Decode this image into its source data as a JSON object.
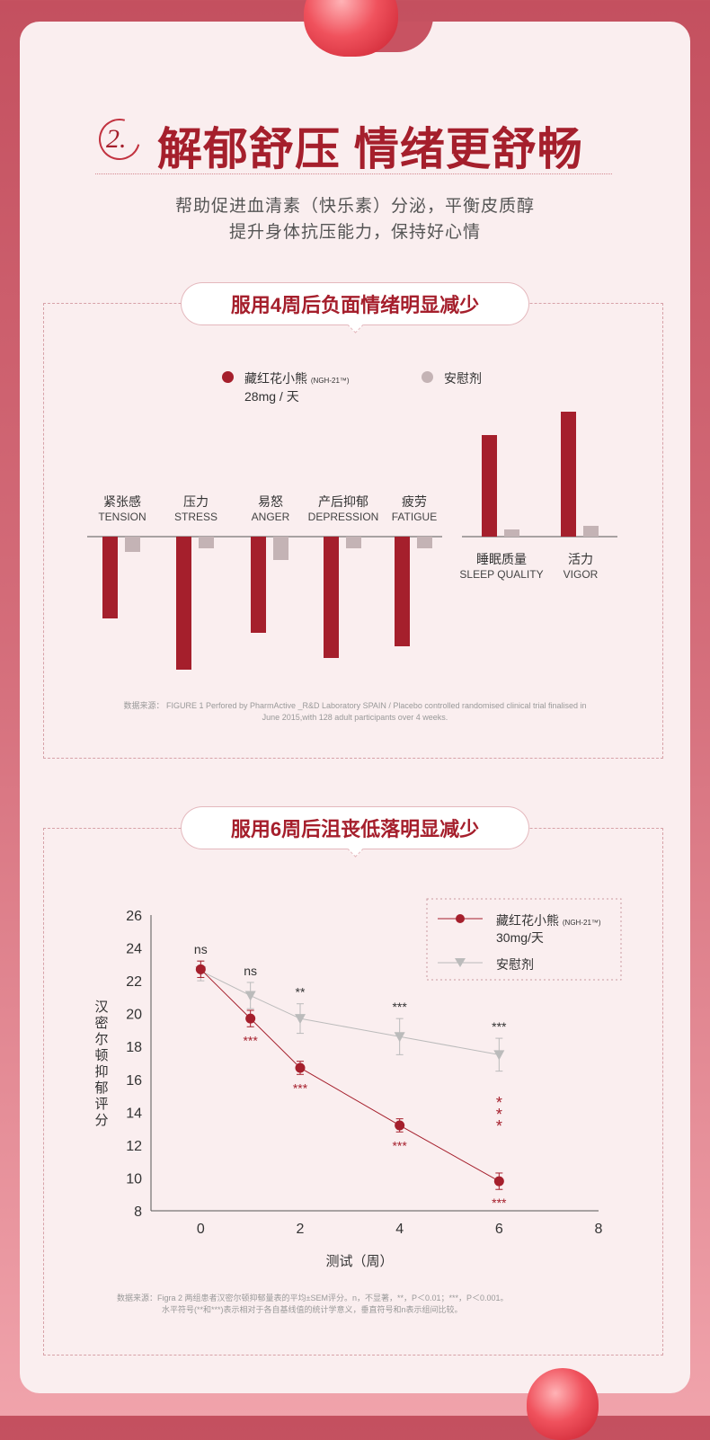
{
  "header": {
    "number": "2.",
    "title": "解郁舒压 情绪更舒畅",
    "subtitle_lines": [
      "帮助促进血清素（快乐素）分泌，平衡皮质醇",
      "提升身体抗压能力，保持好心情"
    ]
  },
  "section1": {
    "pill": "服用4周后负面情绪明显减少",
    "legend": {
      "product_name": "藏红花小熊",
      "product_code": "(NGH-21™)",
      "product_dose": "28mg / 天",
      "placebo": "安慰剂"
    },
    "source_prefix": "数据来源：",
    "source_text": "FIGURE 1 Perfored by PharmActive _R&D Laboratory SPAIN / Placebo controlled randomised clinical trial finalised in June 2015,with 128 adult participants over 4 weeks."
  },
  "section2": {
    "pill": "服用6周后沮丧低落明显减少",
    "legend": {
      "product_name": "藏红花小熊",
      "product_code": "(NGH-21™)",
      "product_dose": "30mg/天",
      "placebo": "安慰剂"
    },
    "source_line1": "数据来源：Figra 2 两组患者汉密尔顿抑郁量表的平均±SEM评分。n，不显著，**，P＜0.01；***，P＜0.001。",
    "source_line2": "水平符号(**和***)表示相对于各自基线值的统计学意义，垂直符号和n表示组间比较。"
  },
  "colors": {
    "product": "#a51f2c",
    "placebo": "#c4b3b5",
    "accent": "#a51f2c"
  },
  "chart_data": [
    {
      "type": "bar",
      "title": "",
      "note": "relative change vs baseline, unitless estimates (no axis printed)",
      "groups": [
        {
          "categories": [
            {
              "cn": "紧张感",
              "en": "TENSION"
            },
            {
              "cn": "压力",
              "en": "STRESS"
            },
            {
              "cn": "易怒",
              "en": "ANGER"
            },
            {
              "cn": "产后抑郁",
              "en": "DEPRESSION"
            },
            {
              "cn": "疲劳",
              "en": "FATIGUE"
            }
          ],
          "series": [
            {
              "name": "藏红花小熊",
              "values": [
                -91,
                -148,
                -107,
                -135,
                -122
              ]
            },
            {
              "name": "安慰剂",
              "values": [
                -17,
                -13,
                -26,
                -13,
                -13
              ]
            }
          ]
        },
        {
          "categories": [
            {
              "cn": "睡眠质量",
              "en": "SLEEP QUALITY"
            },
            {
              "cn": "活力",
              "en": "VIGOR"
            }
          ],
          "series": [
            {
              "name": "藏红花小熊",
              "values": [
                113,
                139
              ]
            },
            {
              "name": "安慰剂",
              "values": [
                8,
                12
              ]
            }
          ]
        }
      ]
    },
    {
      "type": "line",
      "title": "",
      "xlabel": "测试（周）",
      "ylabel": "汉密尔顿抑郁评分",
      "xlim": [
        -1,
        8
      ],
      "ylim": [
        8,
        26
      ],
      "xticks": [
        0,
        2,
        4,
        6,
        8
      ],
      "yticks": [
        8,
        10,
        12,
        14,
        16,
        18,
        20,
        22,
        24,
        26
      ],
      "series": [
        {
          "name": "藏红花小熊",
          "x": [
            0,
            1,
            2,
            4,
            6
          ],
          "y": [
            22.7,
            19.7,
            16.7,
            13.2,
            9.8
          ],
          "err": [
            0.5,
            0.5,
            0.4,
            0.4,
            0.5
          ],
          "marker": "circle",
          "below_labels": [
            "",
            "***",
            "***",
            "***",
            "***"
          ]
        },
        {
          "name": "安慰剂",
          "x": [
            0,
            1,
            2,
            4,
            6
          ],
          "y": [
            22.6,
            21.1,
            19.7,
            18.6,
            17.5
          ],
          "err": [
            0.6,
            0.8,
            0.9,
            1.1,
            1.0
          ],
          "marker": "triangle-down",
          "above_labels": [
            "ns",
            "ns",
            "**",
            "***",
            "***"
          ]
        }
      ],
      "vertical_label": {
        "x": 6,
        "text": "***"
      }
    }
  ]
}
